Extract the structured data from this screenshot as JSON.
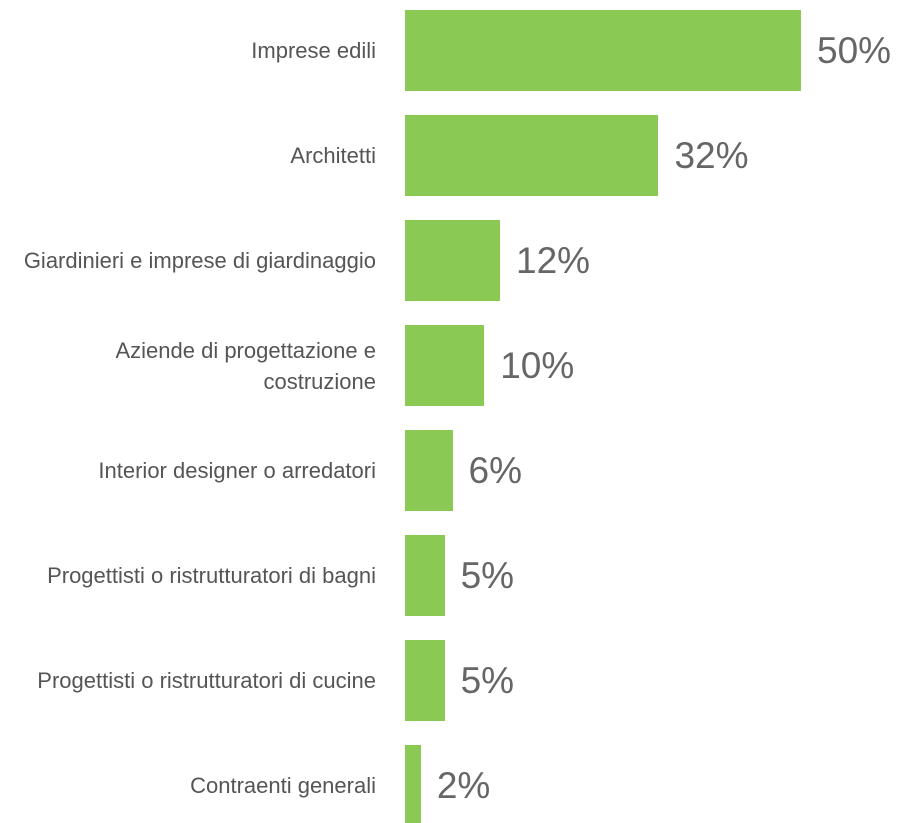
{
  "chart_data": {
    "type": "bar",
    "orientation": "horizontal",
    "categories": [
      "Imprese edili",
      "Architetti",
      "Giardinieri e imprese di giardinaggio",
      "Aziende di progettazione e costruzione",
      "Interior designer o arredatori",
      "Progettisti o ristrutturatori di bagni",
      "Progettisti o ristrutturatori di cucine",
      "Contraenti generali"
    ],
    "values": [
      50,
      32,
      12,
      10,
      6,
      5,
      5,
      2
    ],
    "value_labels": [
      "50%",
      "32%",
      "12%",
      "10%",
      "6%",
      "5%",
      "5%",
      "2%"
    ],
    "color": "#8bc955",
    "xlim": [
      0,
      50
    ]
  }
}
